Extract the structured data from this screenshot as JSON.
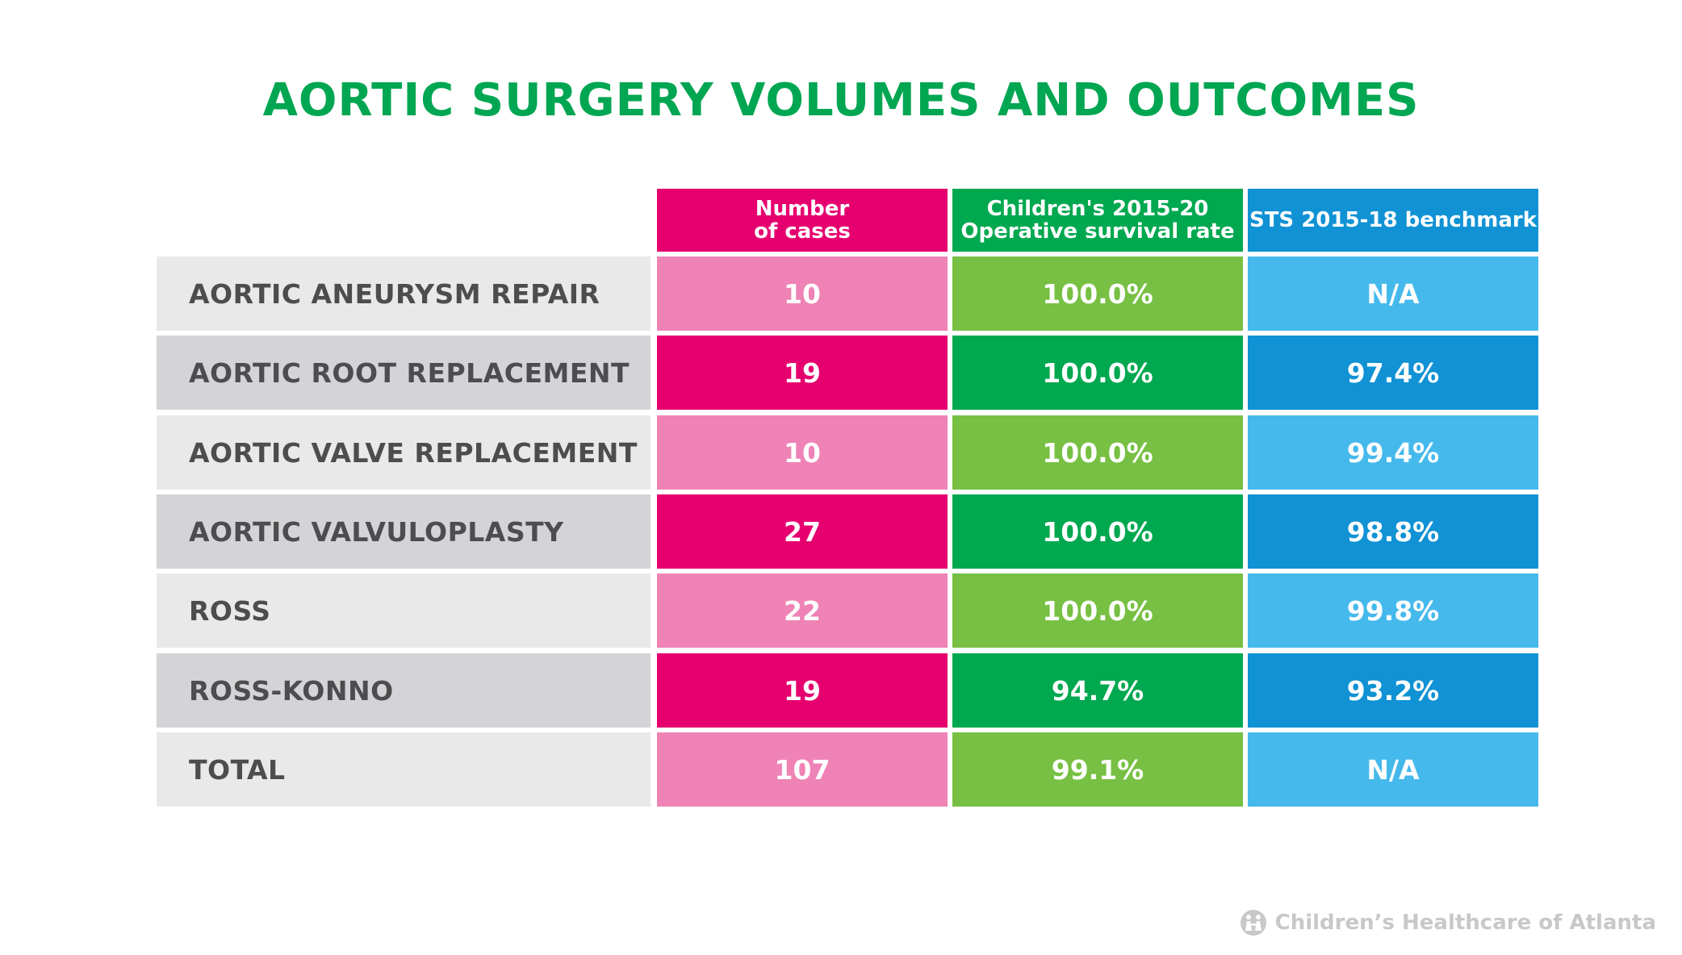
{
  "chart_data": {
    "type": "table",
    "title": "AORTIC SURGERY VOLUMES AND OUTCOMES",
    "columns": [
      {
        "header": "Number\nof cases",
        "color": "#e6006f",
        "light": "#ef83b5"
      },
      {
        "header": "Children's 2015-20\nOperative survival rate",
        "color": "#00a84f",
        "light": "#77c043"
      },
      {
        "header": "STS 2015-18 benchmark",
        "color": "#1092d4",
        "light": "#45b9ec"
      }
    ],
    "rows": [
      {
        "label": "AORTIC ANEURYSM REPAIR",
        "values": [
          "10",
          "100.0%",
          "N/A"
        ]
      },
      {
        "label": "AORTIC ROOT REPLACEMENT",
        "values": [
          "19",
          "100.0%",
          "97.4%"
        ]
      },
      {
        "label": "AORTIC VALVE REPLACEMENT",
        "values": [
          "10",
          "100.0%",
          "99.4%"
        ]
      },
      {
        "label": "AORTIC VALVULOPLASTY",
        "values": [
          "27",
          "100.0%",
          "98.8%"
        ]
      },
      {
        "label": "ROSS",
        "values": [
          "22",
          "100.0%",
          "99.8%"
        ]
      },
      {
        "label": "ROSS-KONNO",
        "values": [
          "19",
          "94.7%",
          "93.2%"
        ]
      },
      {
        "label": "TOTAL",
        "values": [
          "107",
          "99.1%",
          "N/A"
        ]
      }
    ],
    "label_colors": {
      "light": "#e9e9ea",
      "dark": "#d4d4d6"
    }
  },
  "footer": {
    "text": "Children’s Healthcare of Atlanta",
    "logo_icon": "childrens-healthcare-logo-icon"
  }
}
